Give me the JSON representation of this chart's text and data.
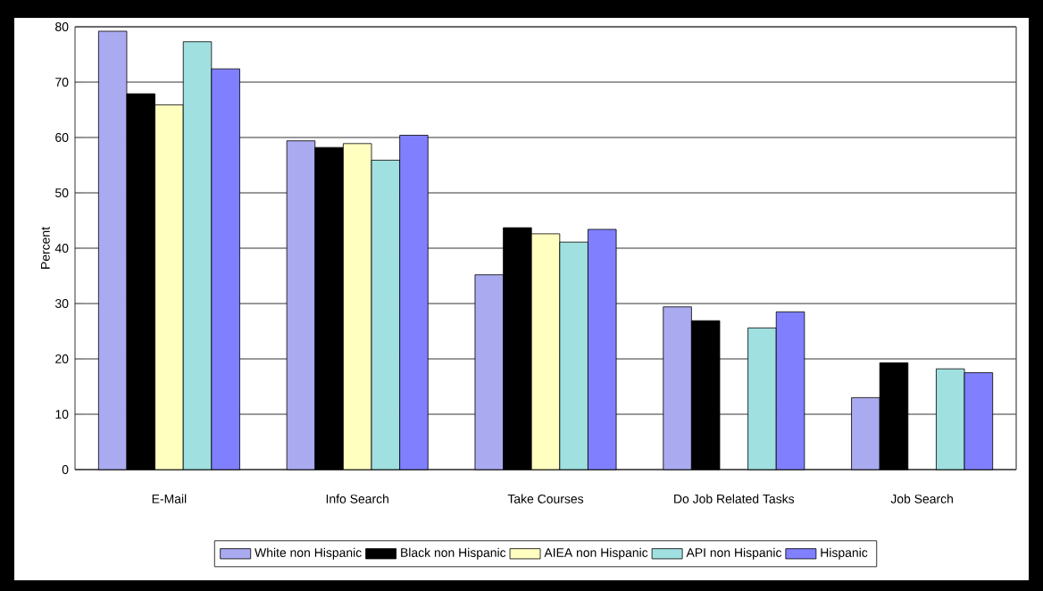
{
  "chart_data": {
    "type": "bar",
    "ylabel": "Percent",
    "categories": [
      "E-Mail",
      "Info Search",
      "Take Courses",
      "Do Job Related Tasks",
      "Job Search"
    ],
    "series": [
      {
        "name": "White non Hispanic",
        "color": "#aaaaf0",
        "values": [
          79.2,
          59.4,
          35.2,
          29.4,
          13.0
        ]
      },
      {
        "name": "Black non Hispanic",
        "color": "#000000",
        "values": [
          67.9,
          58.2,
          43.7,
          26.9,
          19.3
        ]
      },
      {
        "name": "AIEA non Hispanic",
        "color": "#ffffc0",
        "values": [
          65.9,
          58.9,
          42.6,
          null,
          null
        ]
      },
      {
        "name": "API non Hispanic",
        "color": "#a0e0e0",
        "values": [
          77.3,
          55.9,
          41.1,
          25.6,
          18.2
        ]
      },
      {
        "name": "Hispanic",
        "color": "#8080ff",
        "values": [
          72.4,
          60.4,
          43.4,
          28.5,
          17.5
        ]
      }
    ],
    "ylim": [
      0,
      80
    ],
    "yticks": [
      0,
      10,
      20,
      30,
      40,
      50,
      60,
      70,
      80
    ],
    "grid": "y",
    "legend": "bottom"
  }
}
